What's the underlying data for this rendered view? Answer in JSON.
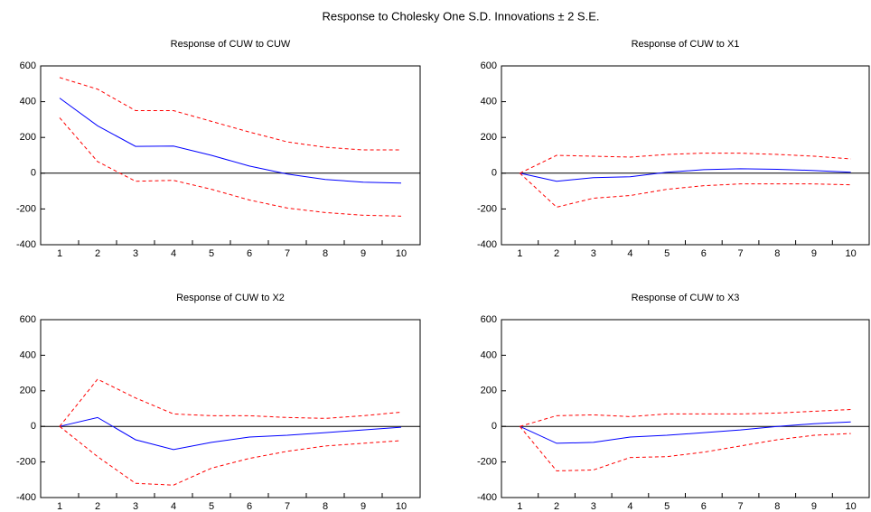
{
  "title": "Response to Cholesky One S.D. Innovations ± 2 S.E.",
  "chart_data": [
    {
      "type": "line",
      "title": "Response of CUW to CUW",
      "categories": [
        "1",
        "2",
        "3",
        "4",
        "5",
        "6",
        "7",
        "8",
        "9",
        "10"
      ],
      "series": [
        {
          "color": "#0000ff",
          "dashed": false,
          "values": [
            420,
            265,
            150,
            152,
            100,
            40,
            -5,
            -35,
            -50,
            -55
          ]
        },
        {
          "color": "#ff0000",
          "dashed": true,
          "values": [
            535,
            470,
            350,
            350,
            290,
            230,
            175,
            145,
            130,
            130
          ]
        },
        {
          "color": "#ff0000",
          "dashed": true,
          "values": [
            310,
            65,
            -45,
            -40,
            -90,
            -150,
            -195,
            -220,
            -235,
            -240
          ]
        }
      ],
      "ylim": [
        -400,
        600
      ],
      "yticks": [
        -400,
        -200,
        0,
        200,
        400,
        600
      ]
    },
    {
      "type": "line",
      "title": "Response of CUW to X1",
      "categories": [
        "1",
        "2",
        "3",
        "4",
        "5",
        "6",
        "7",
        "8",
        "9",
        "10"
      ],
      "series": [
        {
          "color": "#0000ff",
          "dashed": false,
          "values": [
            0,
            -45,
            -25,
            -20,
            5,
            20,
            25,
            22,
            15,
            5
          ]
        },
        {
          "color": "#ff0000",
          "dashed": true,
          "values": [
            0,
            100,
            95,
            90,
            105,
            112,
            112,
            105,
            95,
            80
          ]
        },
        {
          "color": "#ff0000",
          "dashed": true,
          "values": [
            0,
            -190,
            -140,
            -125,
            -90,
            -70,
            -60,
            -60,
            -60,
            -65
          ]
        }
      ],
      "ylim": [
        -400,
        600
      ],
      "yticks": [
        -400,
        -200,
        0,
        200,
        400,
        600
      ]
    },
    {
      "type": "line",
      "title": "Response of CUW to X2",
      "categories": [
        "1",
        "2",
        "3",
        "4",
        "5",
        "6",
        "7",
        "8",
        "9",
        "10"
      ],
      "series": [
        {
          "color": "#0000ff",
          "dashed": false,
          "values": [
            0,
            50,
            -75,
            -130,
            -90,
            -60,
            -50,
            -35,
            -20,
            -5
          ]
        },
        {
          "color": "#ff0000",
          "dashed": true,
          "values": [
            0,
            265,
            160,
            70,
            60,
            60,
            50,
            45,
            60,
            80
          ]
        },
        {
          "color": "#ff0000",
          "dashed": true,
          "values": [
            0,
            -170,
            -320,
            -330,
            -235,
            -180,
            -140,
            -110,
            -95,
            -80
          ]
        }
      ],
      "ylim": [
        -400,
        600
      ],
      "yticks": [
        -400,
        -200,
        0,
        200,
        400,
        600
      ]
    },
    {
      "type": "line",
      "title": "Response of CUW to X3",
      "categories": [
        "1",
        "2",
        "3",
        "4",
        "5",
        "6",
        "7",
        "8",
        "9",
        "10"
      ],
      "series": [
        {
          "color": "#0000ff",
          "dashed": false,
          "values": [
            0,
            -95,
            -90,
            -60,
            -50,
            -35,
            -20,
            0,
            15,
            25
          ]
        },
        {
          "color": "#ff0000",
          "dashed": true,
          "values": [
            0,
            60,
            65,
            55,
            70,
            70,
            70,
            75,
            85,
            95
          ]
        },
        {
          "color": "#ff0000",
          "dashed": true,
          "values": [
            0,
            -250,
            -245,
            -175,
            -170,
            -145,
            -110,
            -75,
            -50,
            -40
          ]
        }
      ],
      "ylim": [
        -400,
        600
      ],
      "yticks": [
        -400,
        -200,
        0,
        200,
        400,
        600
      ]
    }
  ]
}
